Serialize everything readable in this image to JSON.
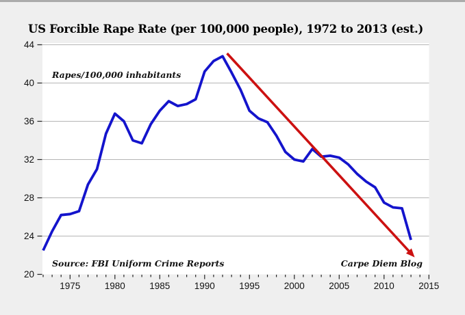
{
  "page": {
    "background": "#efefef",
    "top_border_color": "#ababab"
  },
  "chart_data": {
    "type": "line",
    "title": "US Forcible Rape Rate (per 100,000 people), 1972 to 2013 (est.)",
    "annotation": "Rapes/100,000 inhabitants",
    "source_note": "Source: FBI Uniform Crime Reports",
    "credit": "Carpe Diem Blog",
    "x": [
      1972,
      1973,
      1974,
      1975,
      1976,
      1977,
      1978,
      1979,
      1980,
      1981,
      1982,
      1983,
      1984,
      1985,
      1986,
      1987,
      1988,
      1989,
      1990,
      1991,
      1992,
      1993,
      1994,
      1995,
      1996,
      1997,
      1998,
      1999,
      2000,
      2001,
      2002,
      2003,
      2004,
      2005,
      2006,
      2007,
      2008,
      2009,
      2010,
      2011,
      2012,
      2013
    ],
    "series": [
      {
        "name": "US forcible rape rate per 100,000 people",
        "color": "#1414cc",
        "values": [
          22.5,
          24.5,
          26.2,
          26.3,
          26.6,
          29.4,
          31.0,
          34.7,
          36.8,
          36.0,
          34.0,
          33.7,
          35.7,
          37.1,
          38.1,
          37.6,
          37.8,
          38.3,
          41.2,
          42.3,
          42.8,
          41.1,
          39.3,
          37.1,
          36.3,
          35.9,
          34.5,
          32.8,
          32.0,
          31.8,
          33.1,
          32.3,
          32.4,
          32.2,
          31.5,
          30.5,
          29.7,
          29.1,
          27.5,
          27.0,
          26.9,
          23.6
        ]
      }
    ],
    "trend_arrow": {
      "color": "#cc1111",
      "from": {
        "x": 1992.5,
        "y": 43.1
      },
      "to": {
        "x": 2012.9,
        "y": 22.3
      }
    },
    "xlim": [
      1972,
      2015
    ],
    "ylim": [
      20,
      44
    ],
    "y_ticks": [
      20,
      24,
      28,
      32,
      36,
      40,
      44
    ],
    "x_tick_labels": [
      1975,
      1980,
      1985,
      1990,
      1995,
      2000,
      2005,
      2010,
      2015
    ],
    "x_minor_tick_interval": 1,
    "grid": "horizontal",
    "plot_bg": "#ffffff",
    "grid_color": "#b5b5b5",
    "tick_color": "#222222"
  }
}
